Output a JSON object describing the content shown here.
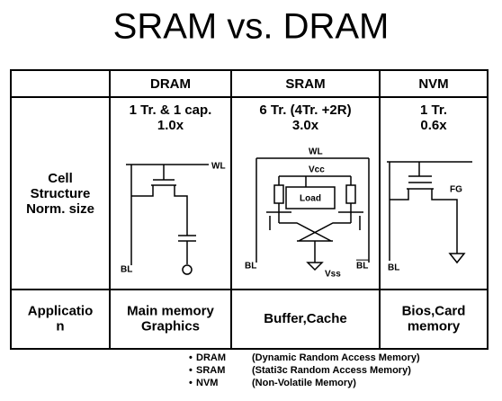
{
  "title": "SRAM vs. DRAM",
  "table": {
    "columns": [
      "DRAM",
      "SRAM",
      "NVM"
    ],
    "rows": [
      {
        "label": [
          "Cell",
          "Structure",
          "Norm. size"
        ],
        "cells": [
          [
            "1 Tr. & 1 cap.",
            "1.0x"
          ],
          [
            "6 Tr. (4Tr. +2R)",
            "3.0x"
          ],
          [
            "1 Tr.",
            "0.6x"
          ]
        ]
      },
      {
        "label": [
          "Applicatio",
          "n"
        ],
        "cells": [
          [
            "Main memory",
            "Graphics"
          ],
          [
            "Buffer,Cache"
          ],
          [
            "Bios,Card",
            "memory"
          ]
        ]
      }
    ]
  },
  "diagrams": {
    "dram": {
      "wl": "WL",
      "bl": "BL"
    },
    "sram": {
      "wl": "WL",
      "vcc": "Vcc",
      "load": "Load",
      "bl": "BL",
      "bl_bar": "BL",
      "vss": "Vss"
    },
    "nvm": {
      "fg": "FG",
      "bl": "BL"
    }
  },
  "footnotes": [
    {
      "term": "DRAM",
      "desc": "(Dynamic Random Access Memory)"
    },
    {
      "term": "SRAM",
      "desc": "(Stati3c Random Access Memory)"
    },
    {
      "term": "NVM",
      "desc": "(Non-Volatile Memory)"
    }
  ]
}
